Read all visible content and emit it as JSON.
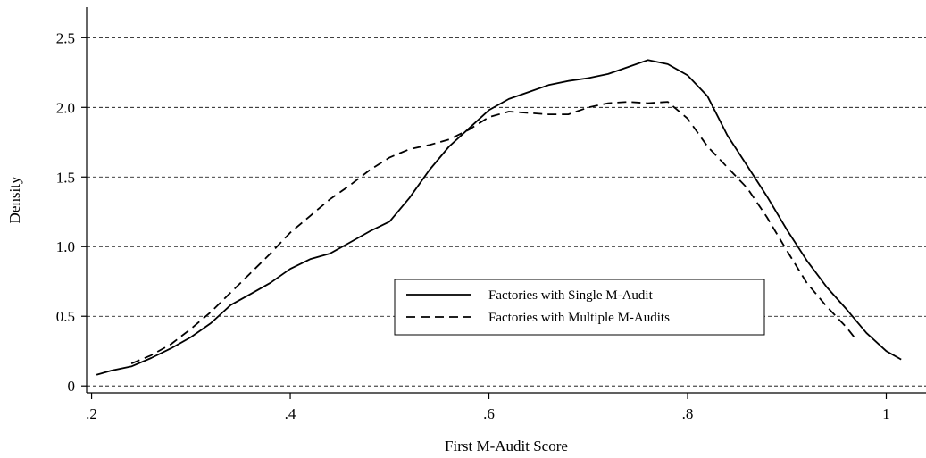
{
  "chart_data": {
    "type": "line",
    "title": "",
    "xlabel": "First M-Audit Score",
    "ylabel": "Density",
    "xlim": [
      0.195,
      1.04
    ],
    "ylim": [
      -0.05,
      2.72
    ],
    "xticks": [
      {
        "value": 0.2,
        "label": ".2"
      },
      {
        "value": 0.4,
        "label": ".4"
      },
      {
        "value": 0.6,
        "label": ".6"
      },
      {
        "value": 0.8,
        "label": ".8"
      },
      {
        "value": 1.0,
        "label": "1"
      }
    ],
    "yticks": [
      {
        "value": 0,
        "label": "0"
      },
      {
        "value": 0.5,
        "label": "0.5"
      },
      {
        "value": 1.0,
        "label": "1.0"
      },
      {
        "value": 1.5,
        "label": "1.5"
      },
      {
        "value": 2.0,
        "label": "2.0"
      },
      {
        "value": 2.5,
        "label": "2.5"
      }
    ],
    "grid": "horizontal-dashed",
    "legend_position": "center-right",
    "series": [
      {
        "name": "Factories with Single M-Audit",
        "style": "solid",
        "x": [
          0.205,
          0.22,
          0.24,
          0.26,
          0.28,
          0.3,
          0.32,
          0.34,
          0.36,
          0.38,
          0.4,
          0.42,
          0.44,
          0.46,
          0.48,
          0.5,
          0.52,
          0.54,
          0.56,
          0.58,
          0.6,
          0.62,
          0.64,
          0.66,
          0.68,
          0.7,
          0.72,
          0.74,
          0.76,
          0.78,
          0.8,
          0.82,
          0.84,
          0.86,
          0.88,
          0.9,
          0.92,
          0.94,
          0.96,
          0.98,
          1.0,
          1.015
        ],
        "y": [
          0.08,
          0.11,
          0.14,
          0.2,
          0.27,
          0.35,
          0.45,
          0.58,
          0.66,
          0.74,
          0.84,
          0.91,
          0.95,
          1.03,
          1.11,
          1.18,
          1.35,
          1.55,
          1.72,
          1.85,
          1.98,
          2.06,
          2.11,
          2.16,
          2.19,
          2.21,
          2.24,
          2.29,
          2.34,
          2.31,
          2.23,
          2.08,
          1.8,
          1.58,
          1.36,
          1.12,
          0.9,
          0.71,
          0.55,
          0.38,
          0.25,
          0.19
        ]
      },
      {
        "name": "Factories with Multiple M-Audits",
        "style": "dashed",
        "x": [
          0.24,
          0.26,
          0.28,
          0.3,
          0.32,
          0.34,
          0.36,
          0.38,
          0.4,
          0.42,
          0.44,
          0.46,
          0.48,
          0.5,
          0.52,
          0.54,
          0.56,
          0.58,
          0.6,
          0.62,
          0.64,
          0.66,
          0.68,
          0.7,
          0.72,
          0.74,
          0.76,
          0.78,
          0.8,
          0.82,
          0.84,
          0.86,
          0.88,
          0.9,
          0.92,
          0.94,
          0.96,
          0.97
        ],
        "y": [
          0.16,
          0.22,
          0.3,
          0.41,
          0.53,
          0.67,
          0.81,
          0.95,
          1.1,
          1.22,
          1.34,
          1.44,
          1.55,
          1.64,
          1.7,
          1.73,
          1.77,
          1.84,
          1.93,
          1.97,
          1.96,
          1.95,
          1.95,
          2.0,
          2.03,
          2.04,
          2.03,
          2.04,
          1.92,
          1.72,
          1.57,
          1.42,
          1.21,
          0.97,
          0.74,
          0.57,
          0.42,
          0.33
        ]
      }
    ]
  }
}
